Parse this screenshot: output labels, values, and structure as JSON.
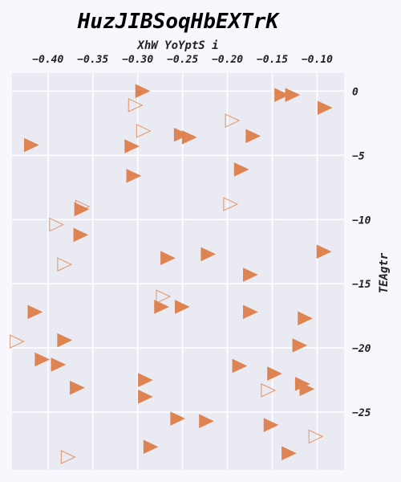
{
  "chart_data": {
    "type": "scatter",
    "title": "HuzJIBSoqHbEXTrK",
    "xlabel": "XhW YoYptS i",
    "ylabel": "TEAgtr",
    "xlim": [
      -0.44,
      -0.07
    ],
    "ylim": [
      -29.5,
      1.4
    ],
    "x_ticks": [
      -0.4,
      -0.35,
      -0.3,
      -0.25,
      -0.2,
      -0.15,
      -0.1
    ],
    "x_tick_labels": [
      "−0.40",
      "−0.35",
      "−0.30",
      "−0.25",
      "−0.20",
      "−0.15",
      "−0.10"
    ],
    "y_ticks": [
      0,
      -5,
      -10,
      -15,
      -20,
      -25
    ],
    "y_tick_labels": [
      "0",
      "−5",
      "−10",
      "−15",
      "−20",
      "−25"
    ],
    "x_axis_position": "top",
    "y_axis_position": "right",
    "grid": true,
    "background_color": "#eaeaf2",
    "marker_color": "#dd8452",
    "series": [
      {
        "marker": "filled-triangle-right",
        "points": [
          {
            "x": -0.295,
            "y": 0.0
          },
          {
            "x": -0.14,
            "y": -0.3
          },
          {
            "x": -0.128,
            "y": -0.3
          },
          {
            "x": -0.092,
            "y": -1.3
          },
          {
            "x": -0.419,
            "y": -4.2
          },
          {
            "x": -0.307,
            "y": -4.3
          },
          {
            "x": -0.252,
            "y": -3.4
          },
          {
            "x": -0.243,
            "y": -3.6
          },
          {
            "x": -0.172,
            "y": -3.5
          },
          {
            "x": -0.305,
            "y": -6.6
          },
          {
            "x": -0.185,
            "y": -6.1
          },
          {
            "x": -0.363,
            "y": -9.2
          },
          {
            "x": -0.364,
            "y": -11.2
          },
          {
            "x": -0.267,
            "y": -13.0
          },
          {
            "x": -0.222,
            "y": -12.7
          },
          {
            "x": -0.093,
            "y": -12.5
          },
          {
            "x": -0.175,
            "y": -14.3
          },
          {
            "x": -0.415,
            "y": -17.2
          },
          {
            "x": -0.274,
            "y": -16.8
          },
          {
            "x": -0.251,
            "y": -16.8
          },
          {
            "x": -0.175,
            "y": -17.2
          },
          {
            "x": -0.114,
            "y": -17.7
          },
          {
            "x": -0.382,
            "y": -19.4
          },
          {
            "x": -0.12,
            "y": -19.8
          },
          {
            "x": -0.407,
            "y": -20.9
          },
          {
            "x": -0.389,
            "y": -21.3
          },
          {
            "x": -0.187,
            "y": -21.4
          },
          {
            "x": -0.148,
            "y": -22.0
          },
          {
            "x": -0.292,
            "y": -22.5
          },
          {
            "x": -0.117,
            "y": -22.8
          },
          {
            "x": -0.112,
            "y": -23.2
          },
          {
            "x": -0.368,
            "y": -23.1
          },
          {
            "x": -0.292,
            "y": -23.8
          },
          {
            "x": -0.256,
            "y": -25.5
          },
          {
            "x": -0.224,
            "y": -25.7
          },
          {
            "x": -0.152,
            "y": -26.0
          },
          {
            "x": -0.286,
            "y": -27.7
          },
          {
            "x": -0.132,
            "y": -28.2
          }
        ]
      },
      {
        "marker": "hollow-triangle-right",
        "points": [
          {
            "x": -0.303,
            "y": -1.1
          },
          {
            "x": -0.294,
            "y": -3.1
          },
          {
            "x": -0.195,
            "y": -2.3
          },
          {
            "x": -0.362,
            "y": -9.0
          },
          {
            "x": -0.391,
            "y": -10.4
          },
          {
            "x": -0.382,
            "y": -13.5
          },
          {
            "x": -0.272,
            "y": -16.0
          },
          {
            "x": -0.197,
            "y": -8.8
          },
          {
            "x": -0.435,
            "y": -19.5
          },
          {
            "x": -0.155,
            "y": -23.3
          },
          {
            "x": -0.102,
            "y": -26.9
          },
          {
            "x": -0.378,
            "y": -28.5
          }
        ]
      }
    ]
  }
}
